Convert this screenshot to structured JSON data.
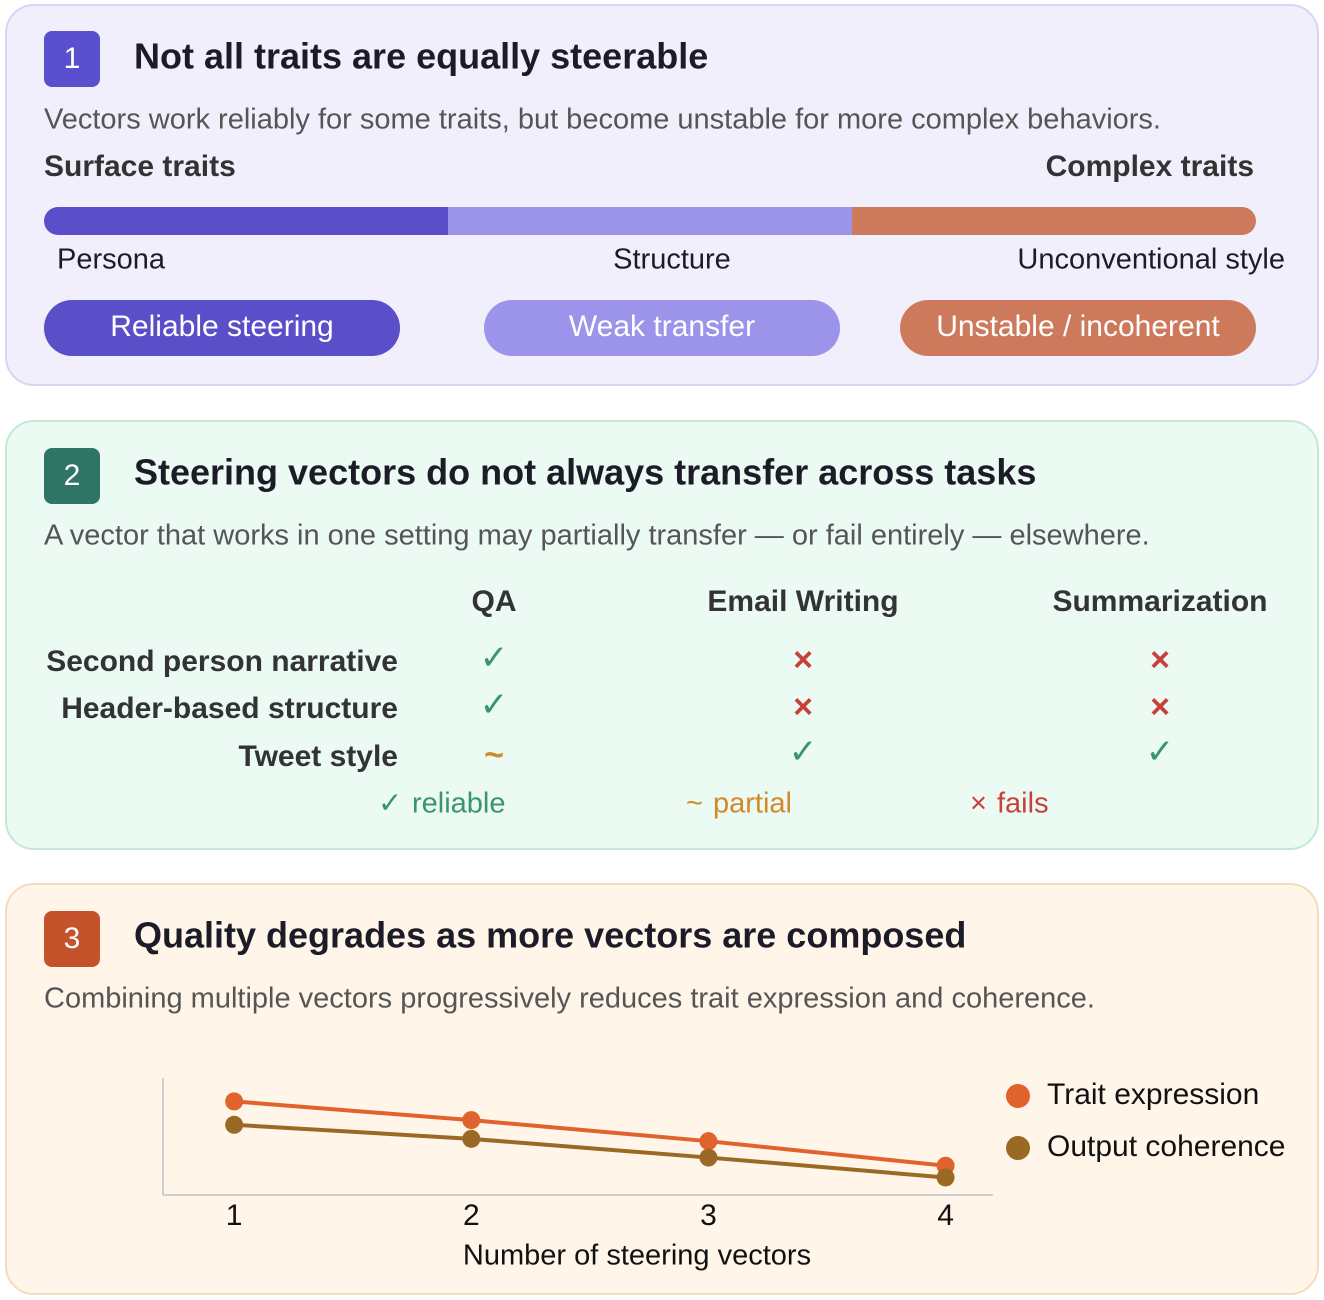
{
  "panel1": {
    "number": "1",
    "title": "Not all traits are equally steerable",
    "subtitle": "Vectors work reliably for some traits, but become unstable for more complex behaviors.",
    "left_label": "Surface traits",
    "right_label": "Complex traits",
    "stages": [
      "Persona",
      "Structure",
      "Unconventional style"
    ],
    "pills": [
      "Reliable steering",
      "Weak transfer",
      "Unstable / incoherent"
    ]
  },
  "panel2": {
    "number": "2",
    "title": "Steering vectors do not always transfer across tasks",
    "subtitle": "A vector that works in one setting may partially transfer — or fail entirely — elsewhere.",
    "table": {
      "columns": [
        "QA",
        "Email Writing",
        "Summarization"
      ],
      "rows": [
        {
          "label": "Second person narrative",
          "cells": [
            "✓",
            "×",
            "×"
          ]
        },
        {
          "label": "Header-based structure",
          "cells": [
            "✓",
            "×",
            "×"
          ]
        },
        {
          "label": "Tweet style",
          "cells": [
            "~",
            "✓",
            "✓"
          ]
        }
      ]
    },
    "legend": [
      {
        "symbol": "✓",
        "label": "reliable"
      },
      {
        "symbol": "~",
        "label": "partial"
      },
      {
        "symbol": "×",
        "label": "fails"
      }
    ]
  },
  "panel3": {
    "number": "3",
    "title": "Quality degrades as more vectors are composed",
    "subtitle": "Combining multiple vectors progressively reduces trait expression and coherence."
  },
  "chart_data": {
    "type": "line",
    "xlabel": "Number of steering vectors",
    "x": [
      1,
      2,
      3,
      4
    ],
    "xlim": [
      0.7,
      4.2
    ],
    "xticks": [
      1,
      2,
      3,
      4
    ],
    "ylim": [
      0,
      100
    ],
    "series": [
      {
        "name": "Trait expression",
        "color": "#e0622c",
        "values": [
          80,
          64,
          46,
          25
        ]
      },
      {
        "name": "Output coherence",
        "color": "#9a6a25",
        "values": [
          60,
          48,
          32,
          15
        ]
      }
    ]
  }
}
